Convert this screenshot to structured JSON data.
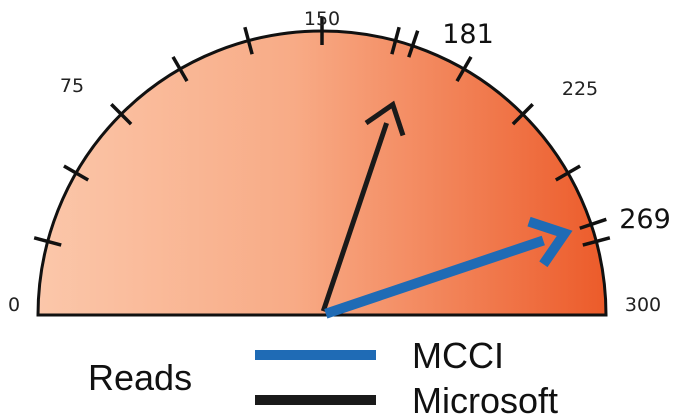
{
  "chart_data": {
    "type": "gauge",
    "range": [
      0,
      300
    ],
    "tick_labels": [
      "0",
      "75",
      "150",
      "225",
      "300"
    ],
    "minor_tick_values": [
      0,
      25,
      50,
      75,
      100,
      125,
      150,
      175,
      200,
      225,
      250,
      275,
      300
    ],
    "series": [
      {
        "name": "MCCI",
        "value": 269,
        "label": "269",
        "color": "#1f6bb5"
      },
      {
        "name": "Microsoft",
        "value": 181,
        "label": "181",
        "color": "#1a1a1a"
      }
    ],
    "legend_title": "Reads",
    "colors": {
      "fill_start": "#fbc7aa",
      "fill_end": "#ec5b2a",
      "outline": "#111111"
    }
  }
}
